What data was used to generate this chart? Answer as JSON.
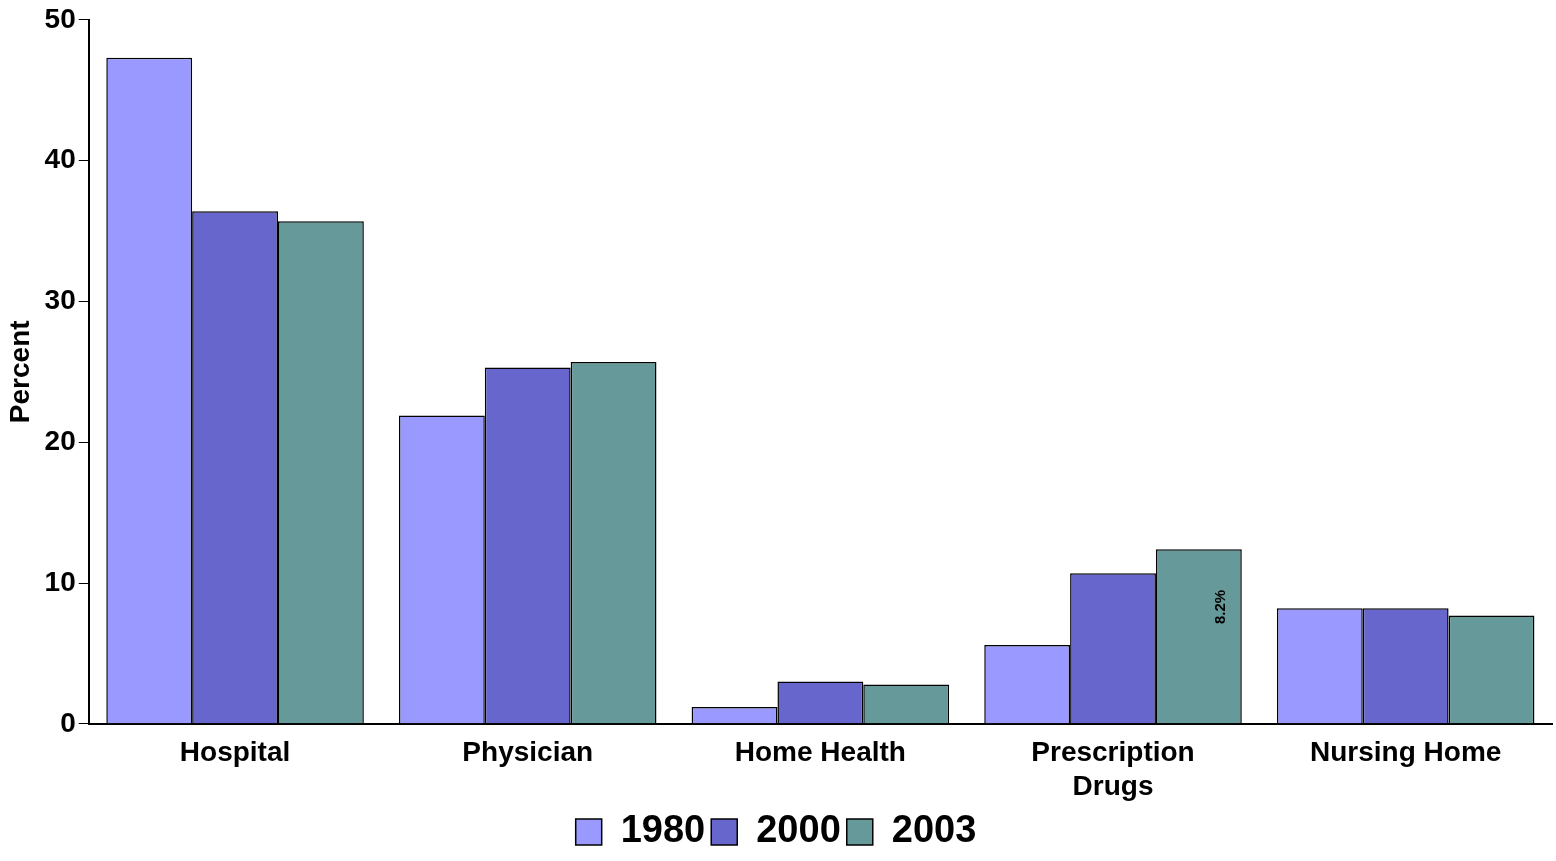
{
  "chart_data": {
    "type": "bar",
    "ylabel": "Percent",
    "categories": [
      "Hospital",
      "Physician",
      "Home Health",
      "Prescription Drugs",
      "Nursing Home"
    ],
    "series": [
      {
        "name": "1980",
        "color": "#9999ff",
        "values": [
          47.3,
          21.9,
          1.2,
          5.6,
          8.2
        ]
      },
      {
        "name": "2000",
        "color": "#6666cc",
        "values": [
          36.4,
          25.3,
          3.0,
          10.7,
          8.2
        ]
      },
      {
        "name": "2003",
        "color": "#669999",
        "values": [
          35.7,
          25.7,
          2.8,
          12.4,
          7.7
        ]
      }
    ],
    "ylim": [
      0,
      50
    ],
    "yticks": [
      0,
      10,
      20,
      30,
      40,
      50
    ],
    "grid": false,
    "legend": "bottom",
    "annotations": [
      "8.2%"
    ]
  }
}
